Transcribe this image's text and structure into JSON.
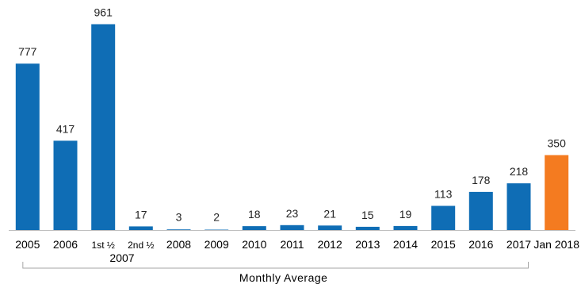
{
  "chart_data": {
    "type": "bar",
    "categories": [
      "2005",
      "2006",
      "1st ½",
      "2nd ½",
      "2008",
      "2009",
      "2010",
      "2011",
      "2012",
      "2013",
      "2014",
      "2015",
      "2016",
      "2017",
      "Jan 2018"
    ],
    "values": [
      777,
      417,
      961,
      17,
      3,
      2,
      18,
      23,
      21,
      15,
      19,
      113,
      178,
      218,
      350
    ],
    "value_labels": [
      "777",
      "417",
      "961",
      "17",
      "3",
      "2",
      "18",
      "23",
      "21",
      "15",
      "19",
      "113",
      "178",
      "218",
      "350"
    ],
    "ylim": [
      0,
      1000
    ],
    "grid": false,
    "colors": {
      "default": "#0f6db5",
      "highlight": "#f47b20",
      "highlight_index": 14,
      "axis": "#bfbfbf",
      "bracket": "#a6a6a6"
    },
    "group_label": {
      "text": "2007",
      "spans": [
        2,
        3
      ]
    },
    "bracket_label": {
      "text": "Monthly Average",
      "spans": [
        0,
        13
      ]
    }
  }
}
